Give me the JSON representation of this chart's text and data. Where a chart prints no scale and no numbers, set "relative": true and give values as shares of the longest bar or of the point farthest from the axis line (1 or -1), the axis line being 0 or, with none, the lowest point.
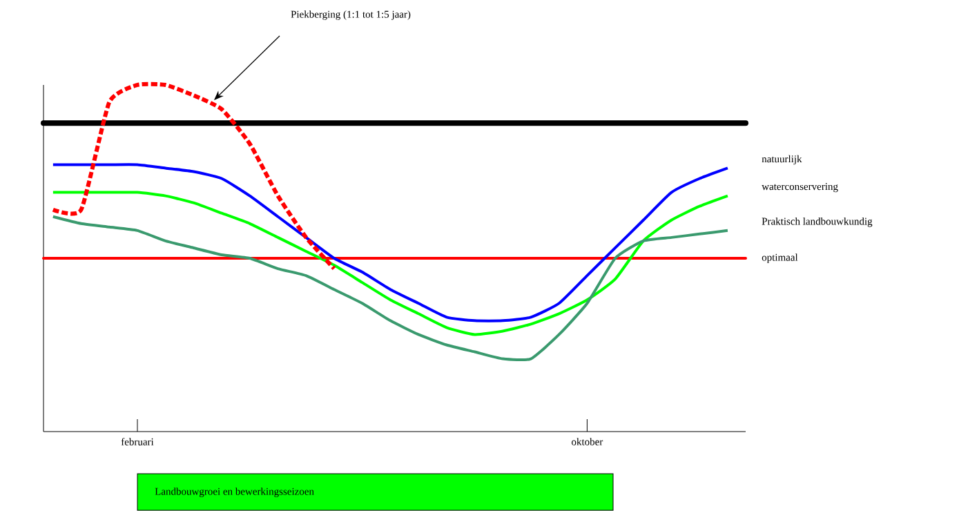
{
  "chart_data": {
    "type": "line",
    "relative": true,
    "categories": [
      null,
      null,
      null,
      "februari",
      null,
      null,
      null,
      null,
      null,
      null,
      null,
      null,
      null,
      null,
      null,
      null,
      null,
      null,
      null,
      "oktober",
      null,
      null,
      null,
      null,
      null
    ],
    "series": [
      {
        "name": "natuurlijk",
        "color": "#0000ff",
        "values": [
          0.77,
          0.77,
          0.77,
          0.77,
          0.76,
          0.75,
          0.73,
          0.68,
          0.62,
          0.56,
          0.5,
          0.46,
          0.41,
          0.37,
          0.33,
          0.32,
          0.32,
          0.33,
          0.37,
          0.45,
          0.53,
          0.61,
          0.69,
          0.73,
          0.76
        ]
      },
      {
        "name": "waterconservering",
        "color": "#00ff00",
        "values": [
          0.69,
          0.69,
          0.69,
          0.69,
          0.68,
          0.66,
          0.63,
          0.6,
          0.56,
          0.52,
          0.48,
          0.43,
          0.38,
          0.34,
          0.3,
          0.28,
          0.29,
          0.31,
          0.34,
          0.38,
          0.44,
          0.55,
          0.61,
          0.65,
          0.68
        ]
      },
      {
        "name": "Praktisch landbouwkundig",
        "color": "#3a9a6e",
        "values": [
          0.62,
          0.6,
          0.59,
          0.58,
          0.55,
          0.53,
          0.51,
          0.5,
          0.47,
          0.45,
          0.41,
          0.37,
          0.32,
          0.28,
          0.25,
          0.23,
          0.21,
          0.21,
          0.28,
          0.37,
          0.5,
          0.55,
          0.56,
          0.57,
          0.58
        ]
      },
      {
        "color": "#ff0000",
        "line_style": "dashed",
        "values": [
          0.64,
          0.64,
          0.95,
          1.0,
          1.0,
          0.97,
          0.93,
          0.83,
          0.68,
          0.56,
          0.47,
          null,
          null,
          null,
          null,
          null,
          null,
          null,
          null,
          null,
          null,
          null,
          null,
          null,
          null
        ]
      }
    ],
    "ref_lines": [
      {
        "axis": "y",
        "value": 0.89,
        "color": "#000000"
      },
      {
        "axis": "y",
        "value": 0.5,
        "label": "optimaal",
        "color": "#ff0000"
      }
    ],
    "annotations": [
      "Piekberging (1:1 tot 1:5 jaar)",
      "Landbouwgroei en bewerkingsseizoen"
    ]
  }
}
